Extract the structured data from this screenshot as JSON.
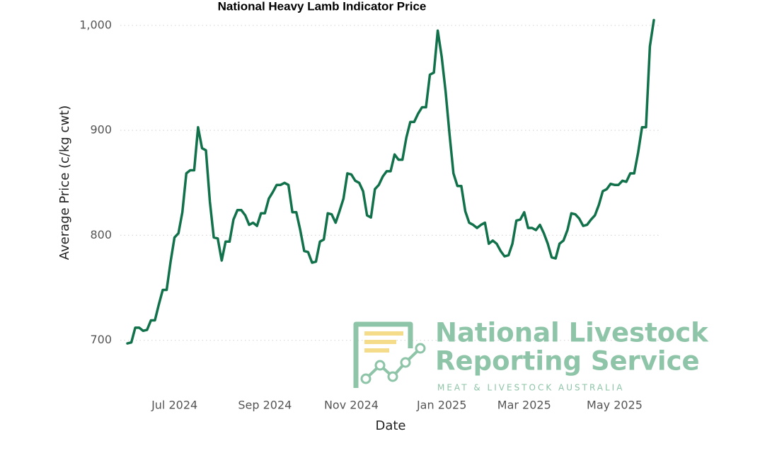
{
  "chart_data": {
    "type": "line",
    "title": "National Heavy Lamb Indicator Price",
    "x_label": "Date",
    "y_label": "Average Price (c/kg cwt)",
    "categories": [
      null,
      null,
      null,
      null,
      null,
      null,
      null,
      null,
      null,
      null,
      null,
      null,
      "Jul 2024",
      null,
      null,
      null,
      null,
      null,
      null,
      null,
      null,
      null,
      null,
      null,
      null,
      null,
      null,
      null,
      null,
      null,
      null,
      null,
      null,
      null,
      null,
      "Sep 2024",
      null,
      null,
      null,
      null,
      null,
      null,
      null,
      null,
      null,
      null,
      null,
      null,
      null,
      null,
      null,
      null,
      null,
      null,
      null,
      null,
      null,
      "Nov 2024",
      null,
      null,
      null,
      null,
      null,
      null,
      null,
      null,
      null,
      null,
      null,
      null,
      null,
      null,
      null,
      null,
      null,
      null,
      null,
      null,
      null,
      null,
      "Jan 2025",
      null,
      null,
      null,
      null,
      null,
      null,
      null,
      null,
      null,
      null,
      null,
      null,
      null,
      null,
      null,
      null,
      null,
      null,
      null,
      null,
      "Mar 2025",
      null,
      null,
      null,
      null,
      null,
      null,
      null,
      null,
      null,
      null,
      null,
      null,
      null,
      null,
      null,
      null,
      null,
      null,
      null,
      null,
      null,
      null,
      "May 2025",
      null,
      null,
      null,
      null,
      null,
      null,
      null,
      null,
      null,
      null
    ],
    "values": [
      697,
      698,
      712,
      712,
      709,
      710,
      719,
      719,
      734,
      748,
      748,
      775,
      798,
      802,
      822,
      859,
      862,
      862,
      903,
      883,
      881,
      832,
      798,
      797,
      776,
      794,
      794,
      815,
      824,
      824,
      819,
      810,
      812,
      809,
      821,
      821,
      835,
      841,
      848,
      848,
      850,
      848,
      822,
      822,
      805,
      785,
      784,
      774,
      775,
      794,
      796,
      821,
      820,
      812,
      823,
      835,
      859,
      858,
      852,
      850,
      842,
      819,
      817,
      844,
      848,
      856,
      861,
      861,
      877,
      872,
      872,
      893,
      908,
      908,
      916,
      922,
      922,
      953,
      955,
      995,
      970,
      937,
      896,
      859,
      847,
      847,
      823,
      812,
      810,
      807,
      810,
      812,
      792,
      795,
      792,
      785,
      780,
      781,
      792,
      814,
      815,
      822,
      807,
      807,
      805,
      810,
      802,
      792,
      779,
      778,
      792,
      795,
      805,
      821,
      820,
      816,
      809,
      810,
      815,
      819,
      829,
      842,
      844,
      849,
      848,
      848,
      852,
      851,
      859,
      859,
      879,
      903,
      903,
      980,
      1005
    ],
    "color": "#11714a",
    "ylim": [
      660,
      1010
    ],
    "yticks": [
      700,
      800,
      900,
      {
        "value": 1000,
        "label": "1,000"
      }
    ],
    "grid": true
  },
  "logo": {
    "line1": "National Livestock",
    "line2": "Reporting Service",
    "tagline": "MEAT & LIVESTOCK AUSTRALIA"
  }
}
